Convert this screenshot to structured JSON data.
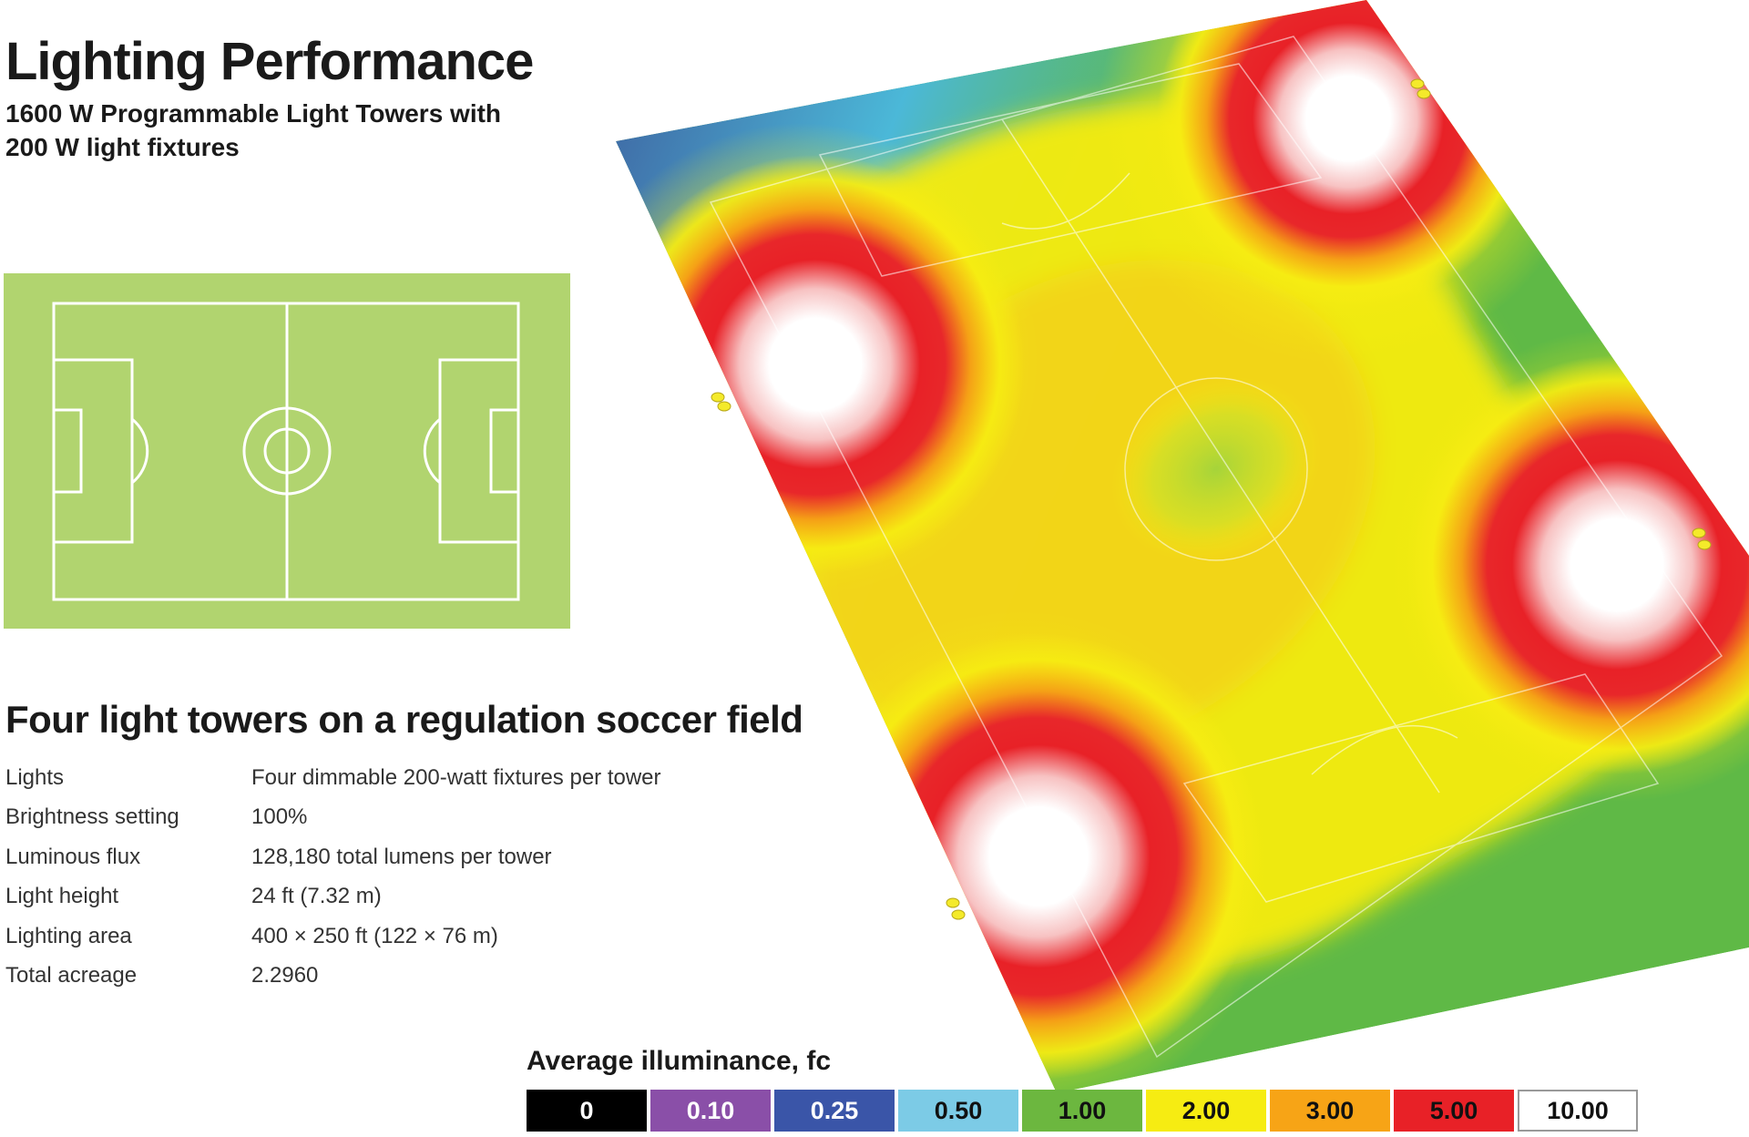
{
  "header": {
    "title": "Lighting Performance",
    "subtitle": "1600 W Programmable Light Towers with 200 W light fixtures"
  },
  "section": {
    "heading": "Four light towers on a regulation soccer field"
  },
  "specs": [
    {
      "label": "Lights",
      "value": "Four dimmable 200-watt fixtures per tower"
    },
    {
      "label": "Brightness setting",
      "value": "100%"
    },
    {
      "label": "Luminous flux",
      "value": "128,180 total lumens per tower"
    },
    {
      "label": "Light height",
      "value": "24 ft (7.32 m)"
    },
    {
      "label": "Lighting area",
      "value": "400 × 250 ft (122 × 76 m)"
    },
    {
      "label": "Total acreage",
      "value": "2.2960"
    }
  ],
  "legend": {
    "title": "Average illuminance, fc",
    "items": [
      {
        "label": "0",
        "color": "#000000",
        "text_color": "#ffffff"
      },
      {
        "label": "0.10",
        "color": "#8a4fa8",
        "text_color": "#ffffff"
      },
      {
        "label": "0.25",
        "color": "#3a55a8",
        "text_color": "#ffffff"
      },
      {
        "label": "0.50",
        "color": "#7ccbe6",
        "text_color": "#111111"
      },
      {
        "label": "1.00",
        "color": "#6cb73f",
        "text_color": "#111111"
      },
      {
        "label": "2.00",
        "color": "#f6ec12",
        "text_color": "#111111"
      },
      {
        "label": "3.00",
        "color": "#f7a416",
        "text_color": "#111111"
      },
      {
        "label": "5.00",
        "color": "#e82127",
        "text_color": "#111111"
      },
      {
        "label": "10.00",
        "color": "#ffffff",
        "text_color": "#111111"
      }
    ]
  },
  "colors": {
    "field_green": "#b1d46f",
    "field_lines": "#ffffff",
    "heat_green": "#5fb946",
    "heat_yellow": "#f6ec12",
    "heat_orange": "#f7a416",
    "heat_red": "#e82127",
    "heat_white": "#ffffff",
    "heat_blue": "#3a55a8"
  }
}
